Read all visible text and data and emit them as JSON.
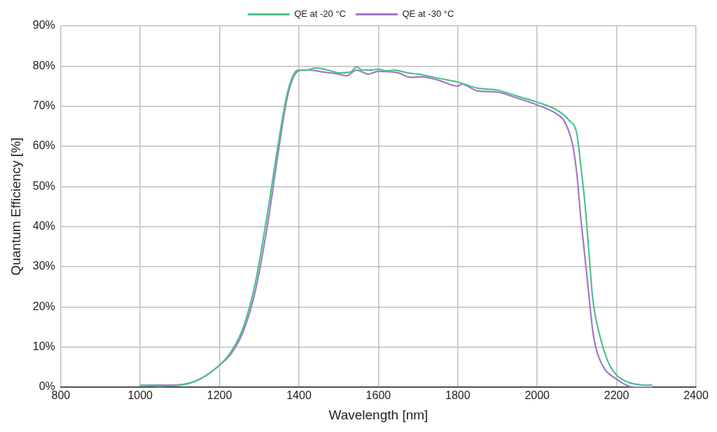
{
  "chart_data": {
    "type": "line",
    "xlabel": "Wavelength [nm]",
    "ylabel": "Quantum Efficiency [%]",
    "xlim": [
      800,
      2400
    ],
    "xticks": [
      800,
      1000,
      1200,
      1400,
      1600,
      1800,
      2000,
      2200,
      2400
    ],
    "ylim": [
      0,
      90
    ],
    "yticks": [
      {
        "value": 0,
        "label": "0%"
      },
      {
        "value": 10,
        "label": "10%"
      },
      {
        "value": 20,
        "label": "20%"
      },
      {
        "value": 30,
        "label": "30%"
      },
      {
        "value": 40,
        "label": "40%"
      },
      {
        "value": 50,
        "label": "50%"
      },
      {
        "value": 60,
        "label": "60%"
      },
      {
        "value": 70,
        "label": "70%"
      },
      {
        "value": 80,
        "label": "80%"
      },
      {
        "value": 90,
        "label": "90%"
      }
    ],
    "grid": true,
    "legend": "top",
    "marker": "none",
    "line_style": "solid",
    "series": [
      {
        "name": "QE at -20 °C",
        "color": "#4cc38a",
        "x": [
          1000,
          1050,
          1100,
          1150,
          1200,
          1230,
          1260,
          1290,
          1320,
          1350,
          1370,
          1390,
          1400,
          1420,
          1440,
          1460,
          1480,
          1500,
          1530,
          1545,
          1560,
          1580,
          1600,
          1620,
          1640,
          1660,
          1680,
          1700,
          1750,
          1800,
          1850,
          1900,
          1950,
          2000,
          2050,
          2080,
          2100,
          2110,
          2120,
          2130,
          2140,
          2160,
          2180,
          2200,
          2230,
          2260,
          2290
        ],
        "values": [
          0.5,
          0.3,
          0.5,
          2,
          5.5,
          9,
          15,
          26,
          43,
          62,
          73,
          78.5,
          79,
          79,
          79.5,
          79.3,
          78.8,
          78.3,
          78.5,
          79.8,
          79,
          79,
          79.2,
          78.8,
          79,
          78.6,
          78.2,
          78,
          77,
          76,
          74.5,
          74,
          72.5,
          71,
          69,
          66.5,
          63,
          55,
          46,
          34,
          22,
          12,
          6,
          3,
          1.2,
          0.6,
          0.5
        ]
      },
      {
        "name": "QE at -30 °C",
        "color": "#a577c9",
        "x": [
          1000,
          1050,
          1100,
          1150,
          1200,
          1230,
          1260,
          1290,
          1320,
          1350,
          1370,
          1390,
          1410,
          1430,
          1460,
          1500,
          1520,
          1545,
          1575,
          1600,
          1650,
          1680,
          1710,
          1750,
          1800,
          1810,
          1850,
          1900,
          1950,
          2000,
          2050,
          2070,
          2090,
          2100,
          2110,
          2125,
          2140,
          2150,
          2170,
          2200,
          2230,
          2250,
          2290
        ],
        "values": [
          0.5,
          0.5,
          0.6,
          2,
          5.5,
          8.5,
          14,
          24,
          40,
          60,
          72,
          78,
          79,
          79,
          78.5,
          78,
          77.6,
          79,
          78,
          78.7,
          78.3,
          77.2,
          77.3,
          76.5,
          75,
          75.5,
          73.8,
          73.5,
          72,
          70.3,
          68,
          66,
          60,
          53,
          42,
          28,
          14,
          9,
          4.5,
          2,
          0.3,
          0,
          0
        ]
      }
    ]
  }
}
